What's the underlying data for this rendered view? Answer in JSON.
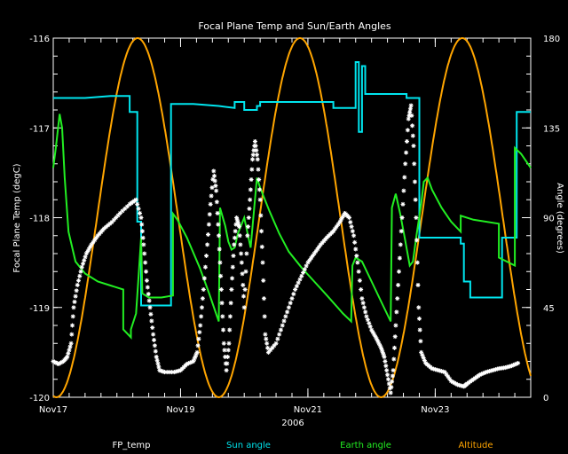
{
  "chart_data": {
    "type": "line",
    "title": "Focal Plane Temp and Sun/Earth Angles",
    "xlabel": "2006",
    "ylabel": "Focal Plane Temp (degC)",
    "y2label": "Angle (degrees)",
    "xlim": [
      0,
      7.5
    ],
    "ylim": [
      -120,
      -116
    ],
    "y2lim": [
      0,
      180
    ],
    "x_ticks": [
      {
        "x": 0,
        "label": "Nov17"
      },
      {
        "x": 2,
        "label": "Nov19"
      },
      {
        "x": 4,
        "label": "Nov21"
      },
      {
        "x": 6,
        "label": "Nov23"
      }
    ],
    "y_ticks": [
      {
        "v": -120,
        "label": "-120"
      },
      {
        "v": -119,
        "label": "-119"
      },
      {
        "v": -118,
        "label": "-118"
      },
      {
        "v": -117,
        "label": "-117"
      },
      {
        "v": -116,
        "label": "-116"
      }
    ],
    "y2_ticks": [
      {
        "v": 0,
        "label": "0"
      },
      {
        "v": 45,
        "label": "45"
      },
      {
        "v": 90,
        "label": "90"
      },
      {
        "v": 135,
        "label": "135"
      },
      {
        "v": 180,
        "label": "180"
      }
    ],
    "legend": [
      {
        "label": "FP_temp",
        "color": "#ffffff"
      },
      {
        "label": "Sun angle",
        "color": "#00e5ee"
      },
      {
        "label": "Earth angle",
        "color": "#22ee22"
      },
      {
        "label": "Altitude",
        "color": "#ffa500"
      }
    ],
    "legend_placement": "bottom",
    "series": [
      {
        "key": "fp_temp",
        "axis": "left",
        "style": "markers",
        "color": "#ffffff",
        "points": [
          [
            0.0,
            -119.6
          ],
          [
            0.08,
            -119.63
          ],
          [
            0.16,
            -119.6
          ],
          [
            0.22,
            -119.55
          ],
          [
            0.28,
            -119.4
          ],
          [
            0.32,
            -119.0
          ],
          [
            0.38,
            -118.75
          ],
          [
            0.45,
            -118.55
          ],
          [
            0.52,
            -118.4
          ],
          [
            0.6,
            -118.3
          ],
          [
            0.7,
            -118.2
          ],
          [
            0.8,
            -118.12
          ],
          [
            0.92,
            -118.05
          ],
          [
            1.05,
            -117.95
          ],
          [
            1.2,
            -117.85
          ],
          [
            1.3,
            -117.8
          ],
          [
            1.38,
            -118.0
          ],
          [
            1.42,
            -118.3
          ],
          [
            1.47,
            -118.7
          ],
          [
            1.52,
            -119.0
          ],
          [
            1.57,
            -119.3
          ],
          [
            1.62,
            -119.55
          ],
          [
            1.67,
            -119.7
          ],
          [
            1.75,
            -119.72
          ],
          [
            1.9,
            -119.72
          ],
          [
            2.0,
            -119.7
          ],
          [
            2.1,
            -119.63
          ],
          [
            2.2,
            -119.6
          ],
          [
            2.26,
            -119.5
          ],
          [
            2.31,
            -119.2
          ],
          [
            2.36,
            -118.8
          ],
          [
            2.42,
            -118.3
          ],
          [
            2.47,
            -117.85
          ],
          [
            2.52,
            -117.48
          ],
          [
            2.56,
            -117.7
          ],
          [
            2.6,
            -118.2
          ],
          [
            2.64,
            -118.8
          ],
          [
            2.68,
            -119.4
          ],
          [
            2.72,
            -119.7
          ],
          [
            2.76,
            -119.4
          ],
          [
            2.8,
            -118.8
          ],
          [
            2.84,
            -118.3
          ],
          [
            2.88,
            -118.0
          ],
          [
            2.92,
            -118.1
          ],
          [
            2.96,
            -118.5
          ],
          [
            3.0,
            -119.0
          ],
          [
            3.05,
            -118.2
          ],
          [
            3.09,
            -117.8
          ],
          [
            3.13,
            -117.35
          ],
          [
            3.17,
            -117.15
          ],
          [
            3.21,
            -117.35
          ],
          [
            3.25,
            -117.8
          ],
          [
            3.29,
            -118.5
          ],
          [
            3.33,
            -119.3
          ],
          [
            3.38,
            -119.5
          ],
          [
            3.5,
            -119.4
          ],
          [
            3.6,
            -119.2
          ],
          [
            3.7,
            -119.0
          ],
          [
            3.8,
            -118.8
          ],
          [
            3.9,
            -118.65
          ],
          [
            4.0,
            -118.5
          ],
          [
            4.1,
            -118.4
          ],
          [
            4.2,
            -118.3
          ],
          [
            4.3,
            -118.22
          ],
          [
            4.4,
            -118.15
          ],
          [
            4.5,
            -118.05
          ],
          [
            4.58,
            -117.95
          ],
          [
            4.65,
            -118.0
          ],
          [
            4.72,
            -118.2
          ],
          [
            4.78,
            -118.5
          ],
          [
            4.85,
            -118.9
          ],
          [
            4.92,
            -119.1
          ],
          [
            5.0,
            -119.25
          ],
          [
            5.08,
            -119.35
          ],
          [
            5.15,
            -119.45
          ],
          [
            5.2,
            -119.55
          ],
          [
            5.25,
            -119.75
          ],
          [
            5.3,
            -119.95
          ],
          [
            5.34,
            -119.7
          ],
          [
            5.38,
            -119.2
          ],
          [
            5.43,
            -118.6
          ],
          [
            5.48,
            -118.0
          ],
          [
            5.53,
            -117.4
          ],
          [
            5.58,
            -116.9
          ],
          [
            5.62,
            -116.75
          ],
          [
            5.66,
            -117.2
          ],
          [
            5.7,
            -118.0
          ],
          [
            5.74,
            -119.0
          ],
          [
            5.78,
            -119.5
          ],
          [
            5.85,
            -119.62
          ],
          [
            5.95,
            -119.68
          ],
          [
            6.05,
            -119.7
          ],
          [
            6.15,
            -119.72
          ],
          [
            6.25,
            -119.82
          ],
          [
            6.35,
            -119.86
          ],
          [
            6.45,
            -119.88
          ],
          [
            6.5,
            -119.85
          ],
          [
            6.6,
            -119.8
          ],
          [
            6.7,
            -119.75
          ],
          [
            6.8,
            -119.72
          ],
          [
            6.9,
            -119.7
          ],
          [
            7.0,
            -119.68
          ],
          [
            7.1,
            -119.67
          ],
          [
            7.2,
            -119.65
          ],
          [
            7.3,
            -119.62
          ]
        ]
      },
      {
        "key": "sun_angle",
        "axis": "right",
        "style": "step",
        "color": "#00e5ee",
        "points": [
          [
            0.0,
            150
          ],
          [
            0.5,
            150
          ],
          [
            0.9,
            151
          ],
          [
            1.2,
            151
          ],
          [
            1.2,
            143
          ],
          [
            1.32,
            143
          ],
          [
            1.32,
            88
          ],
          [
            1.38,
            88
          ],
          [
            1.38,
            46
          ],
          [
            1.85,
            46
          ],
          [
            1.85,
            147
          ],
          [
            2.2,
            147
          ],
          [
            2.6,
            146
          ],
          [
            2.85,
            145
          ],
          [
            2.85,
            148
          ],
          [
            3.0,
            148
          ],
          [
            3.0,
            144
          ],
          [
            3.2,
            144
          ],
          [
            3.2,
            146
          ],
          [
            3.25,
            146
          ],
          [
            3.25,
            148
          ],
          [
            3.5,
            148
          ],
          [
            3.9,
            148
          ],
          [
            4.2,
            148
          ],
          [
            4.4,
            148
          ],
          [
            4.4,
            145
          ],
          [
            4.75,
            145
          ],
          [
            4.75,
            168
          ],
          [
            4.8,
            168
          ],
          [
            4.8,
            133
          ],
          [
            4.85,
            133
          ],
          [
            4.85,
            166
          ],
          [
            4.9,
            166
          ],
          [
            4.9,
            152
          ],
          [
            5.55,
            152
          ],
          [
            5.55,
            150
          ],
          [
            5.75,
            150
          ],
          [
            5.75,
            80
          ],
          [
            6.0,
            80
          ],
          [
            6.0,
            80
          ],
          [
            6.4,
            80
          ],
          [
            6.4,
            77
          ],
          [
            6.45,
            77
          ],
          [
            6.45,
            58
          ],
          [
            6.55,
            58
          ],
          [
            6.55,
            50
          ],
          [
            6.68,
            50
          ],
          [
            6.68,
            50
          ],
          [
            7.05,
            50
          ],
          [
            7.05,
            80
          ],
          [
            7.28,
            80
          ],
          [
            7.28,
            143
          ],
          [
            7.5,
            143
          ]
        ]
      },
      {
        "key": "earth_angle",
        "axis": "right",
        "style": "line",
        "color": "#22ee22",
        "points": [
          [
            0.0,
            115
          ],
          [
            0.04,
            125
          ],
          [
            0.1,
            142
          ],
          [
            0.14,
            135
          ],
          [
            0.18,
            110
          ],
          [
            0.24,
            83
          ],
          [
            0.35,
            68
          ],
          [
            0.5,
            62
          ],
          [
            0.7,
            58
          ],
          [
            0.9,
            56
          ],
          [
            1.1,
            54
          ],
          [
            1.1,
            34
          ],
          [
            1.22,
            30
          ],
          [
            1.22,
            34
          ],
          [
            1.3,
            42
          ],
          [
            1.35,
            65
          ],
          [
            1.38,
            80
          ],
          [
            1.4,
            52
          ],
          [
            1.5,
            50
          ],
          [
            1.7,
            50
          ],
          [
            1.88,
            51
          ],
          [
            1.88,
            92
          ],
          [
            1.95,
            89
          ],
          [
            2.1,
            80
          ],
          [
            2.3,
            65
          ],
          [
            2.45,
            52
          ],
          [
            2.6,
            38
          ],
          [
            2.62,
            95
          ],
          [
            2.7,
            86
          ],
          [
            2.75,
            78
          ],
          [
            2.8,
            74
          ],
          [
            2.85,
            75
          ],
          [
            2.9,
            82
          ],
          [
            3.0,
            90
          ],
          [
            3.1,
            75
          ],
          [
            3.2,
            110
          ],
          [
            3.25,
            105
          ],
          [
            3.4,
            93
          ],
          [
            3.55,
            82
          ],
          [
            3.7,
            73
          ],
          [
            3.9,
            65
          ],
          [
            4.1,
            58
          ],
          [
            4.3,
            51
          ],
          [
            4.55,
            42
          ],
          [
            4.68,
            38
          ],
          [
            4.7,
            66
          ],
          [
            4.75,
            70
          ],
          [
            4.85,
            68
          ],
          [
            5.0,
            58
          ],
          [
            5.15,
            48
          ],
          [
            5.3,
            38
          ],
          [
            5.32,
            95
          ],
          [
            5.38,
            102
          ],
          [
            5.45,
            92
          ],
          [
            5.52,
            80
          ],
          [
            5.6,
            66
          ],
          [
            5.65,
            68
          ],
          [
            5.7,
            80
          ],
          [
            5.78,
            97
          ],
          [
            5.82,
            108
          ],
          [
            5.88,
            110
          ],
          [
            5.95,
            104
          ],
          [
            6.1,
            95
          ],
          [
            6.25,
            88
          ],
          [
            6.4,
            83
          ],
          [
            6.4,
            91
          ],
          [
            6.6,
            89
          ],
          [
            7.0,
            87
          ],
          [
            7.0,
            70
          ],
          [
            7.25,
            66
          ],
          [
            7.25,
            125
          ],
          [
            7.35,
            122
          ],
          [
            7.5,
            115
          ]
        ]
      },
      {
        "key": "altitude",
        "axis": "right",
        "style": "curve",
        "color": "#ffa500",
        "period": 2.55,
        "phase": 2.6,
        "min": 0,
        "max": 180
      }
    ]
  }
}
